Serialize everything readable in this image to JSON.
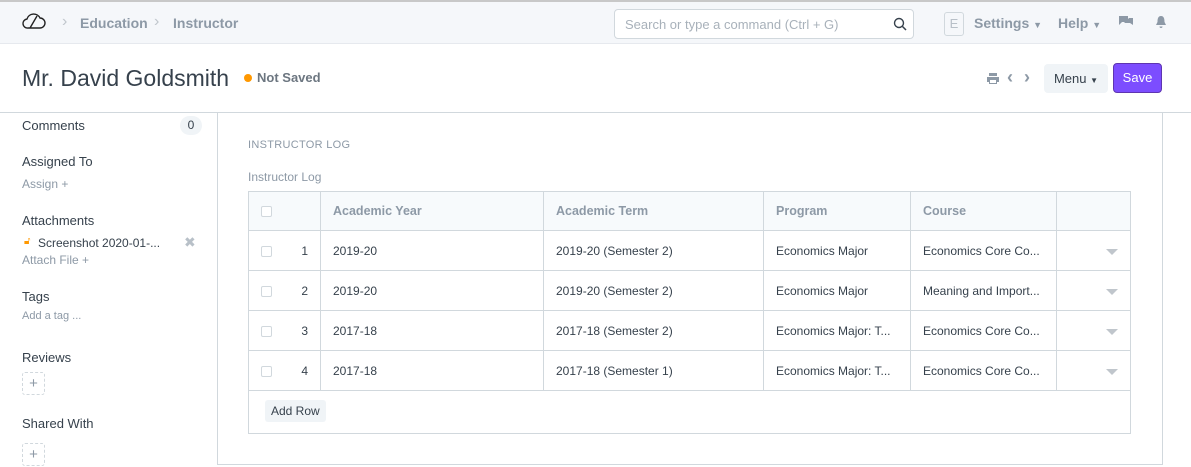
{
  "navbar": {
    "breadcrumbs": [
      "Education",
      "Instructor"
    ],
    "search_placeholder": "Search or type a command (Ctrl + G)",
    "avatar_letter": "E",
    "settings": "Settings",
    "help": "Help"
  },
  "header": {
    "title": "Mr. David Goldsmith",
    "status": "Not Saved",
    "status_color": "#ff9800",
    "menu": "Menu",
    "save": "Save",
    "accent": "#7c4dff"
  },
  "sidebar": {
    "comments": "Comments",
    "comments_count": "0",
    "assigned_to": "Assigned To",
    "assign": "Assign +",
    "attachments": "Attachments",
    "attachment_file": "Screenshot 2020-01-...",
    "attach_file": "Attach File +",
    "tags": "Tags",
    "add_tag": "Add a tag ...",
    "reviews": "Reviews",
    "shared_with": "Shared With"
  },
  "section": {
    "heading": "INSTRUCTOR LOG",
    "field_label": "Instructor Log",
    "columns": [
      "Academic Year",
      "Academic Term",
      "Program",
      "Course"
    ],
    "rows": [
      {
        "idx": "1",
        "year": "2019-20",
        "term": "2019-20 (Semester 2)",
        "program": "Economics Major",
        "course": "Economics Core Co..."
      },
      {
        "idx": "2",
        "year": "2019-20",
        "term": "2019-20 (Semester 2)",
        "program": "Economics Major",
        "course": "Meaning and Import..."
      },
      {
        "idx": "3",
        "year": "2017-18",
        "term": "2017-18 (Semester 2)",
        "program": "Economics Major: T...",
        "course": "Economics Core Co..."
      },
      {
        "idx": "4",
        "year": "2017-18",
        "term": "2017-18 (Semester 1)",
        "program": "Economics Major: T...",
        "course": "Economics Core Co..."
      }
    ],
    "add_row": "Add Row"
  }
}
